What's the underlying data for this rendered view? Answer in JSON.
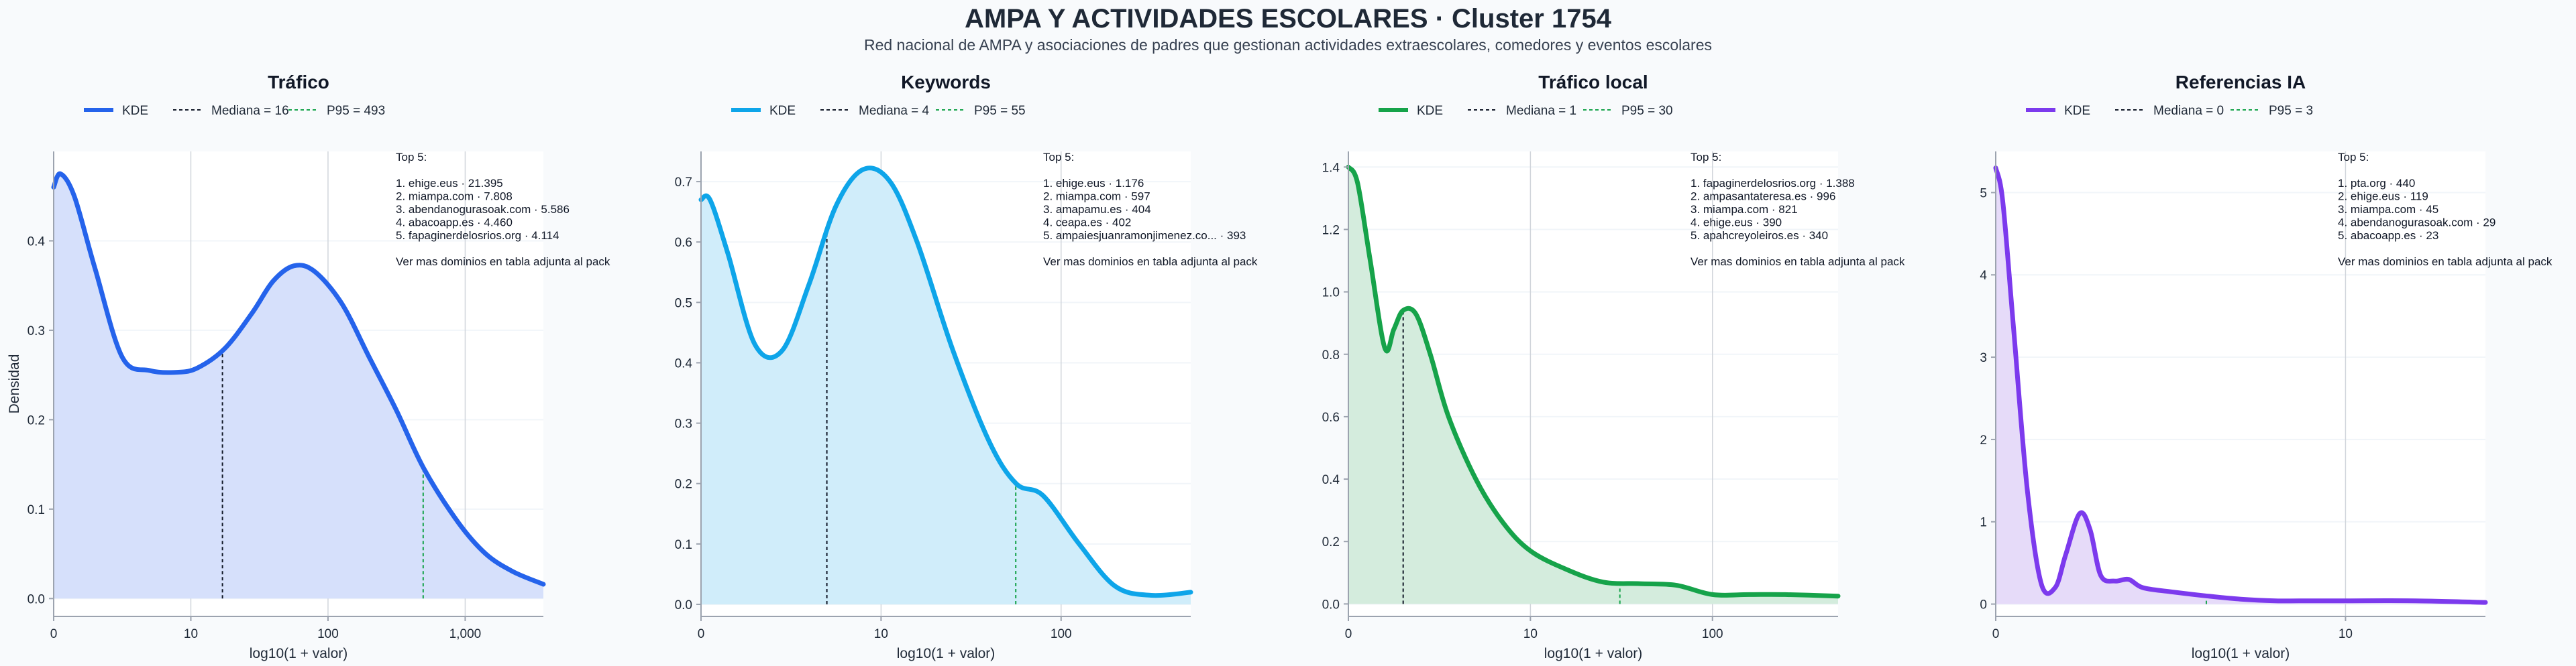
{
  "title": "AMPA Y ACTIVIDADES ESCOLARES · Cluster 1754",
  "subtitle": "Red nacional de AMPA y asociaciones de padres que gestionan actividades extraescolares, comedores y eventos escolares",
  "colors": {
    "background": "#f8fafc",
    "median_line": "#111827",
    "p95_line": "#16a34a",
    "grid": "#e5e7eb",
    "axis": "#9ca3af"
  },
  "chart_data": [
    {
      "type": "area",
      "title": "Tráfico",
      "xlabel": "log10(1 + valor)",
      "ylabel": "Densidad",
      "x_scale": "log",
      "xlim": [
        0,
        3.57
      ],
      "ylim": [
        -0.02,
        0.5
      ],
      "x_ticks": [
        {
          "value": 0,
          "label": "0"
        },
        {
          "value": 1,
          "label": "10"
        },
        {
          "value": 2,
          "label": "100"
        },
        {
          "value": 3,
          "label": "1,000"
        }
      ],
      "y_ticks": [
        {
          "value": 0,
          "label": "0.0"
        },
        {
          "value": 0.1,
          "label": "0.1"
        },
        {
          "value": 0.2,
          "label": "0.2"
        },
        {
          "value": 0.3,
          "label": "0.3"
        },
        {
          "value": 0.4,
          "label": "0.4"
        }
      ],
      "color": "#2563eb",
      "fill": "#d6e0fb",
      "legend": {
        "kde": "KDE",
        "median": "Mediana = 16",
        "p95": "P95 = 493"
      },
      "median": 16,
      "p95": 493,
      "series": [
        {
          "name": "KDE",
          "x": [
            0,
            0.05,
            0.15,
            0.3,
            0.5,
            0.7,
            0.9,
            1.05,
            1.25,
            1.45,
            1.6,
            1.75,
            1.9,
            2.1,
            2.3,
            2.5,
            2.7,
            2.95,
            3.15,
            3.35,
            3.57
          ],
          "y": [
            0.46,
            0.475,
            0.45,
            0.37,
            0.27,
            0.255,
            0.253,
            0.258,
            0.28,
            0.32,
            0.355,
            0.372,
            0.366,
            0.33,
            0.27,
            0.21,
            0.145,
            0.085,
            0.05,
            0.03,
            0.016
          ]
        }
      ],
      "top5": {
        "heading": "Top 5:",
        "items": [
          "1. ehige.eus · 21.395",
          "2. miampa.com · 7.808",
          "3. abendanogurasoak.com · 5.586",
          "4. abacoapp.es · 4.460",
          "5. fapaginerdelosrios.org · 4.114"
        ],
        "footer": "Ver mas dominios en tabla adjunta al pack"
      }
    },
    {
      "type": "area",
      "title": "Keywords",
      "xlabel": "log10(1 + valor)",
      "ylabel": "",
      "x_scale": "log",
      "xlim": [
        0,
        2.72
      ],
      "ylim": [
        -0.02,
        0.75
      ],
      "x_ticks": [
        {
          "value": 0,
          "label": "0"
        },
        {
          "value": 1,
          "label": "10"
        },
        {
          "value": 2,
          "label": "100"
        }
      ],
      "y_ticks": [
        {
          "value": 0,
          "label": "0.0"
        },
        {
          "value": 0.1,
          "label": "0.1"
        },
        {
          "value": 0.2,
          "label": "0.2"
        },
        {
          "value": 0.3,
          "label": "0.3"
        },
        {
          "value": 0.4,
          "label": "0.4"
        },
        {
          "value": 0.5,
          "label": "0.5"
        },
        {
          "value": 0.6,
          "label": "0.6"
        },
        {
          "value": 0.7,
          "label": "0.7"
        }
      ],
      "color": "#0ea5e9",
      "fill": "#d0edfa",
      "legend": {
        "kde": "KDE",
        "median": "Mediana = 4",
        "p95": "P95 = 55"
      },
      "median": 4,
      "p95": 55,
      "series": [
        {
          "name": "KDE",
          "x": [
            0,
            0.05,
            0.15,
            0.3,
            0.45,
            0.6,
            0.75,
            0.9,
            1.05,
            1.2,
            1.4,
            1.6,
            1.75,
            1.9,
            2.1,
            2.3,
            2.5,
            2.72
          ],
          "y": [
            0.67,
            0.67,
            0.58,
            0.43,
            0.42,
            0.53,
            0.66,
            0.72,
            0.7,
            0.6,
            0.42,
            0.27,
            0.2,
            0.18,
            0.1,
            0.03,
            0.015,
            0.02
          ]
        }
      ],
      "top5": {
        "heading": "Top 5:",
        "items": [
          "1. ehige.eus · 1.176",
          "2. miampa.com · 597",
          "3. amapamu.es · 404",
          "4. ceapa.es · 402",
          "5. ampaiesjuanramonjimenez.co... · 393"
        ],
        "footer": "Ver mas dominios en tabla adjunta al pack"
      }
    },
    {
      "type": "area",
      "title": "Tráfico local",
      "xlabel": "log10(1 + valor)",
      "ylabel": "",
      "x_scale": "log",
      "xlim": [
        0,
        2.69
      ],
      "ylim": [
        -0.04,
        1.45
      ],
      "x_ticks": [
        {
          "value": 0,
          "label": "0"
        },
        {
          "value": 1,
          "label": "10"
        },
        {
          "value": 2,
          "label": "100"
        }
      ],
      "y_ticks": [
        {
          "value": 0,
          "label": "0.0"
        },
        {
          "value": 0.2,
          "label": "0.2"
        },
        {
          "value": 0.4,
          "label": "0.4"
        },
        {
          "value": 0.6,
          "label": "0.6"
        },
        {
          "value": 0.8,
          "label": "0.8"
        },
        {
          "value": 1.0,
          "label": "1.0"
        },
        {
          "value": 1.2,
          "label": "1.2"
        },
        {
          "value": 1.4,
          "label": "1.4"
        }
      ],
      "color": "#16a34a",
      "fill": "#d4ecdd",
      "legend": {
        "kde": "KDE",
        "median": "Mediana = 1",
        "p95": "P95 = 30"
      },
      "median": 1,
      "p95": 30,
      "series": [
        {
          "name": "KDE",
          "x": [
            0,
            0.05,
            0.12,
            0.2,
            0.25,
            0.3,
            0.37,
            0.45,
            0.55,
            0.7,
            0.85,
            1.0,
            1.2,
            1.4,
            1.6,
            1.8,
            2.0,
            2.2,
            2.4,
            2.69
          ],
          "y": [
            1.4,
            1.35,
            1.1,
            0.82,
            0.88,
            0.94,
            0.93,
            0.8,
            0.6,
            0.4,
            0.26,
            0.17,
            0.11,
            0.07,
            0.065,
            0.06,
            0.03,
            0.03,
            0.03,
            0.025
          ]
        }
      ],
      "top5": {
        "heading": "Top 5:",
        "items": [
          "1. fapaginerdelosrios.org · 1.388",
          "2. ampasantateresa.es · 996",
          "3. miampa.com · 821",
          "4. ehige.eus · 390",
          "5. apahcreyoleiros.es · 340"
        ],
        "footer": "Ver mas dominios en tabla adjunta al pack"
      }
    },
    {
      "type": "area",
      "title": "Referencias IA",
      "xlabel": "log10(1 + valor)",
      "ylabel": "",
      "x_scale": "log",
      "xlim": [
        0,
        1.4
      ],
      "ylim": [
        -0.15,
        5.5
      ],
      "x_ticks": [
        {
          "value": 0,
          "label": "0"
        },
        {
          "value": 1,
          "label": "10"
        }
      ],
      "y_ticks": [
        {
          "value": 0,
          "label": "0"
        },
        {
          "value": 1,
          "label": "1"
        },
        {
          "value": 2,
          "label": "2"
        },
        {
          "value": 3,
          "label": "3"
        },
        {
          "value": 4,
          "label": "4"
        },
        {
          "value": 5,
          "label": "5"
        }
      ],
      "color": "#7c3aed",
      "fill": "#e6dbf9",
      "legend": {
        "kde": "KDE",
        "median": "Mediana = 0",
        "p95": "P95 = 3"
      },
      "median": 0,
      "p95": 3,
      "series": [
        {
          "name": "KDE",
          "x": [
            0,
            0.02,
            0.05,
            0.09,
            0.13,
            0.17,
            0.2,
            0.24,
            0.27,
            0.3,
            0.34,
            0.38,
            0.42,
            0.5,
            0.6,
            0.7,
            0.8,
            0.9,
            1.0,
            1.2,
            1.4
          ],
          "y": [
            5.3,
            4.9,
            3.4,
            1.4,
            0.25,
            0.2,
            0.6,
            1.1,
            0.9,
            0.35,
            0.28,
            0.3,
            0.2,
            0.15,
            0.1,
            0.06,
            0.04,
            0.04,
            0.04,
            0.04,
            0.02
          ]
        }
      ],
      "top5": {
        "heading": "Top 5:",
        "items": [
          "1. pta.org · 440",
          "2. ehige.eus · 119",
          "3. miampa.com · 45",
          "4. abendanogurasoak.com · 29",
          "5. abacoapp.es · 23"
        ],
        "footer": "Ver mas dominios en tabla adjunta al pack"
      }
    }
  ]
}
